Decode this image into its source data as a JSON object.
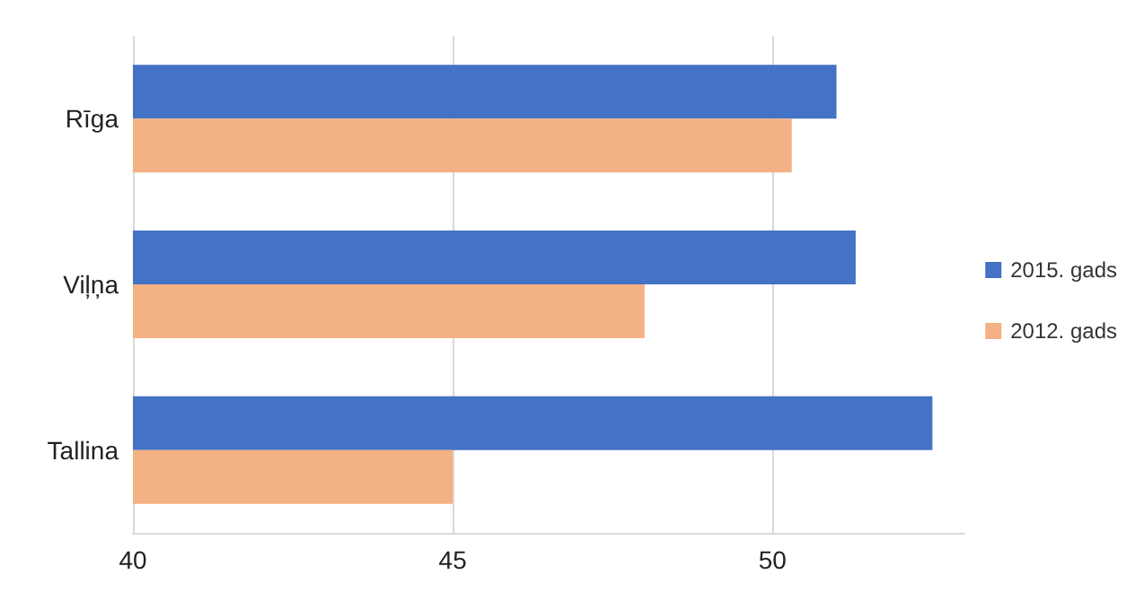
{
  "chart_data": {
    "type": "bar",
    "orientation": "horizontal",
    "categories": [
      "Rīga",
      "Viļņa",
      "Tallina"
    ],
    "series": [
      {
        "name": "2015. gads",
        "color": "#4472c4",
        "values": [
          51.0,
          51.3,
          52.5
        ]
      },
      {
        "name": "2012. gads",
        "color": "#f4b183",
        "values": [
          50.3,
          48.0,
          45.0
        ]
      }
    ],
    "xlim": [
      40,
      53
    ],
    "xticks": [
      40,
      45,
      50
    ],
    "grid": "x",
    "legend": "right"
  }
}
